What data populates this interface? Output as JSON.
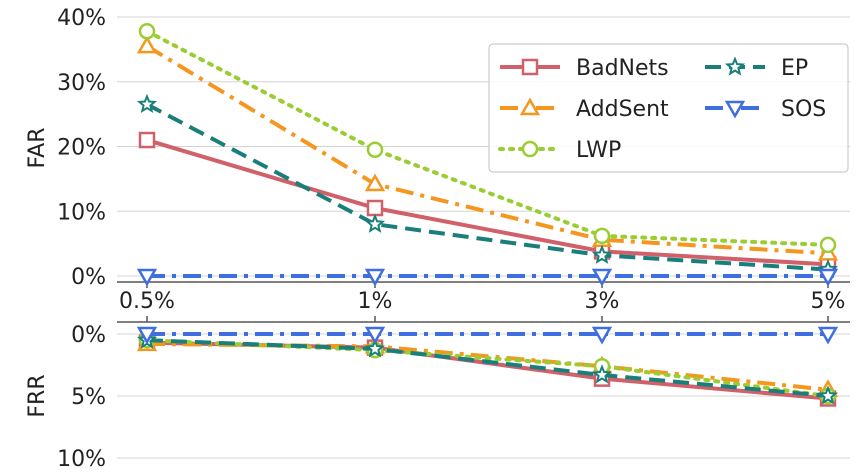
{
  "chart_data": [
    {
      "type": "line",
      "ylabel": "FAR",
      "x_categories": [
        "0.5%",
        "1%",
        "3%",
        "5%"
      ],
      "ylim": [
        0,
        40
      ],
      "y_ticks": [
        "0%",
        "10%",
        "20%",
        "30%",
        "40%"
      ],
      "y_tick_values": [
        0,
        10,
        20,
        30,
        40
      ],
      "grid": "horizontal",
      "legend": "top-right",
      "series": [
        {
          "name": "BadNets",
          "values": [
            21.0,
            10.5,
            3.8,
            1.8
          ],
          "color": "#d0606a",
          "style": "solid",
          "marker": "square"
        },
        {
          "name": "AddSent",
          "values": [
            35.5,
            14.2,
            5.6,
            3.5
          ],
          "color": "#f5961e",
          "style": "dashdot",
          "marker": "triangle-up"
        },
        {
          "name": "LWP",
          "values": [
            37.8,
            19.5,
            6.2,
            4.8
          ],
          "color": "#9acd32",
          "style": "dotted",
          "marker": "circle"
        },
        {
          "name": "EP",
          "values": [
            26.5,
            8.0,
            3.2,
            1.0
          ],
          "color": "#1a7f7a",
          "style": "dashed",
          "marker": "star"
        },
        {
          "name": "SOS",
          "values": [
            0.0,
            0.0,
            0.0,
            0.0
          ],
          "color": "#3f6ee0",
          "style": "dashdot",
          "marker": "triangle-down"
        }
      ]
    },
    {
      "type": "line",
      "ylabel": "FRR",
      "x_categories": [
        "0.5%",
        "1%",
        "3%",
        "5%"
      ],
      "ylim": [
        0,
        10
      ],
      "y_inverted": true,
      "y_ticks": [
        "0%",
        "5%",
        "10%"
      ],
      "y_tick_values": [
        0,
        5,
        10
      ],
      "grid": "horizontal",
      "series": [
        {
          "name": "BadNets",
          "values": [
            0.7,
            1.1,
            3.6,
            5.2
          ],
          "color": "#d0606a",
          "style": "solid",
          "marker": "square"
        },
        {
          "name": "AddSent",
          "values": [
            0.8,
            1.0,
            2.6,
            4.5
          ],
          "color": "#f5961e",
          "style": "dashdot",
          "marker": "triangle-up"
        },
        {
          "name": "LWP",
          "values": [
            0.5,
            1.3,
            2.6,
            5.0
          ],
          "color": "#9acd32",
          "style": "dotted",
          "marker": "circle"
        },
        {
          "name": "EP",
          "values": [
            0.5,
            1.2,
            3.3,
            5.0
          ],
          "color": "#1a7f7a",
          "style": "dashed",
          "marker": "star"
        },
        {
          "name": "SOS",
          "values": [
            0.0,
            0.0,
            0.0,
            0.0
          ],
          "color": "#3f6ee0",
          "style": "dashdot",
          "marker": "triangle-down"
        }
      ]
    }
  ]
}
